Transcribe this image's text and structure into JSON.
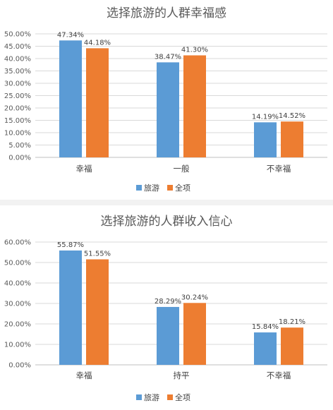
{
  "chart_data": [
    {
      "type": "bar",
      "title": "选择旅游的人群幸福感",
      "categories": [
        "幸福",
        "一般",
        "不幸福"
      ],
      "series": [
        {
          "name": "旅游",
          "values": [
            47.34,
            38.47,
            14.19
          ],
          "labels": [
            "47.34%",
            "38.47%",
            "14.19%"
          ],
          "color": "#5b9bd5"
        },
        {
          "name": "全项",
          "values": [
            44.18,
            41.3,
            14.52
          ],
          "labels": [
            "44.18%",
            "41.30%",
            "14.52%"
          ],
          "color": "#ed7d31"
        }
      ],
      "yticks": [
        "0.00%",
        "5.00%",
        "10.00%",
        "15.00%",
        "20.00%",
        "25.00%",
        "30.00%",
        "35.00%",
        "40.00%",
        "45.00%",
        "50.00%"
      ],
      "ylim": [
        0,
        50
      ],
      "ystep": 5,
      "grid": true,
      "legend": "bottom-center"
    },
    {
      "type": "bar",
      "title": "选择旅游的人群收入信心",
      "categories": [
        "幸福",
        "持平",
        "不幸福"
      ],
      "series": [
        {
          "name": "旅游",
          "values": [
            55.87,
            28.29,
            15.84
          ],
          "labels": [
            "55.87%",
            "28.29%",
            "15.84%"
          ],
          "color": "#5b9bd5"
        },
        {
          "name": "全项",
          "values": [
            51.55,
            30.24,
            18.21
          ],
          "labels": [
            "51.55%",
            "30.24%",
            "18.21%"
          ],
          "color": "#ed7d31"
        }
      ],
      "yticks": [
        "0.00%",
        "10.00%",
        "20.00%",
        "30.00%",
        "40.00%",
        "50.00%",
        "60.00%"
      ],
      "ylim": [
        0,
        60
      ],
      "ystep": 10,
      "grid": true,
      "legend": "bottom-center"
    }
  ]
}
